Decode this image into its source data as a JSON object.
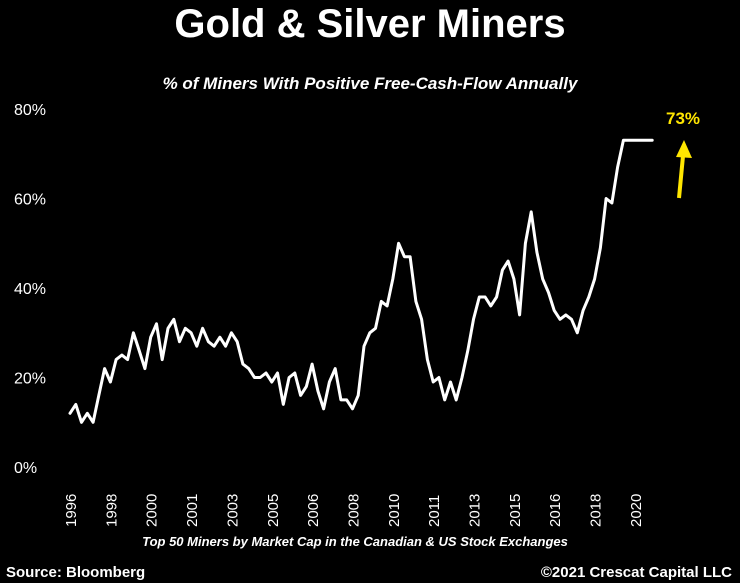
{
  "header": {
    "title": "Gold & Silver Miners",
    "subtitle": "% of Miners With Positive Free-Cash-Flow Annually"
  },
  "footer": {
    "note": "Top 50 Miners by Market Cap in the Canadian & US Stock Exchanges",
    "source": "Source: Bloomberg",
    "copyright": "©2021 Crescat Capital LLC"
  },
  "colors": {
    "background": "#000000",
    "line": "#ffffff",
    "callout": "#ffe600"
  },
  "chart_data": {
    "type": "line",
    "title": "Gold & Silver Miners",
    "subtitle": "% of Miners With Positive Free-Cash-Flow Annually",
    "xlabel": "",
    "ylabel": "",
    "xlim": [
      1996,
      2021.5
    ],
    "ylim": [
      0,
      80
    ],
    "grid": false,
    "ytick_labels": [
      "0%",
      "20%",
      "40%",
      "60%",
      "80%"
    ],
    "ytick_values": [
      0,
      20,
      40,
      60,
      80
    ],
    "xtick_labels": [
      "1996",
      "1998",
      "2000",
      "2001",
      "2003",
      "2005",
      "2006",
      "2008",
      "2010",
      "2011",
      "2013",
      "2015",
      "2016",
      "2018",
      "2020"
    ],
    "xtick_values": [
      1996,
      1997.75,
      1999.5,
      2001.25,
      2003,
      2004.75,
      2006.5,
      2008.25,
      2010,
      2011.75,
      2013.5,
      2015.25,
      2017,
      2018.75,
      2020.5
    ],
    "annotation": {
      "text": "73%",
      "x": 2021.25,
      "y": 73
    },
    "series": [
      {
        "x": [
          1996.0,
          1996.25,
          1996.5,
          1996.75,
          1997.0,
          1997.25,
          1997.5,
          1997.75,
          1998.0,
          1998.25,
          1998.5,
          1998.75,
          1999.0,
          1999.25,
          1999.5,
          1999.75,
          2000.0,
          2000.25,
          2000.5,
          2000.75,
          2001.0,
          2001.25,
          2001.5,
          2001.75,
          2002.0,
          2002.25,
          2002.5,
          2002.75,
          2003.0,
          2003.25,
          2003.5,
          2003.75,
          2004.0,
          2004.25,
          2004.5,
          2004.75,
          2005.0,
          2005.25,
          2005.5,
          2005.75,
          2006.0,
          2006.25,
          2006.5,
          2006.75,
          2007.0,
          2007.25,
          2007.5,
          2007.75,
          2008.0,
          2008.25,
          2008.5,
          2008.75,
          2009.0,
          2009.25,
          2009.5,
          2009.75,
          2010.0,
          2010.25,
          2010.5,
          2010.75,
          2011.0,
          2011.25,
          2011.5,
          2011.75,
          2012.0,
          2012.25,
          2012.5,
          2012.75,
          2013.0,
          2013.25,
          2013.5,
          2013.75,
          2014.0,
          2014.25,
          2014.5,
          2014.75,
          2015.0,
          2015.25,
          2015.5,
          2015.75,
          2016.0,
          2016.25,
          2016.5,
          2016.75,
          2017.0,
          2017.25,
          2017.5,
          2017.75,
          2018.0,
          2018.25,
          2018.5,
          2018.75,
          2019.0,
          2019.25,
          2019.5,
          2019.75,
          2020.0,
          2020.25,
          2020.5,
          2020.75,
          2021.0,
          2021.25
        ],
        "y": [
          12,
          14,
          10,
          12,
          10,
          16,
          22,
          19,
          24,
          25,
          24,
          30,
          26,
          22,
          29,
          32,
          24,
          31,
          33,
          28,
          31,
          30,
          27,
          31,
          28,
          27,
          29,
          27,
          30,
          28,
          23,
          22,
          20,
          20,
          21,
          19,
          21,
          14,
          20,
          21,
          16,
          18,
          23,
          17,
          13,
          19,
          22,
          15,
          15,
          13,
          16,
          27,
          30,
          31,
          37,
          36,
          42,
          50,
          47,
          47,
          37,
          33,
          24,
          19,
          20,
          15,
          19,
          15,
          20,
          26,
          33,
          38,
          38,
          36,
          38,
          44,
          46,
          42,
          34,
          50,
          57,
          48,
          42,
          39,
          35,
          33,
          34,
          33,
          30,
          35,
          38,
          42,
          49,
          60,
          59,
          67,
          73,
          73,
          73,
          73,
          73,
          73
        ]
      }
    ]
  }
}
